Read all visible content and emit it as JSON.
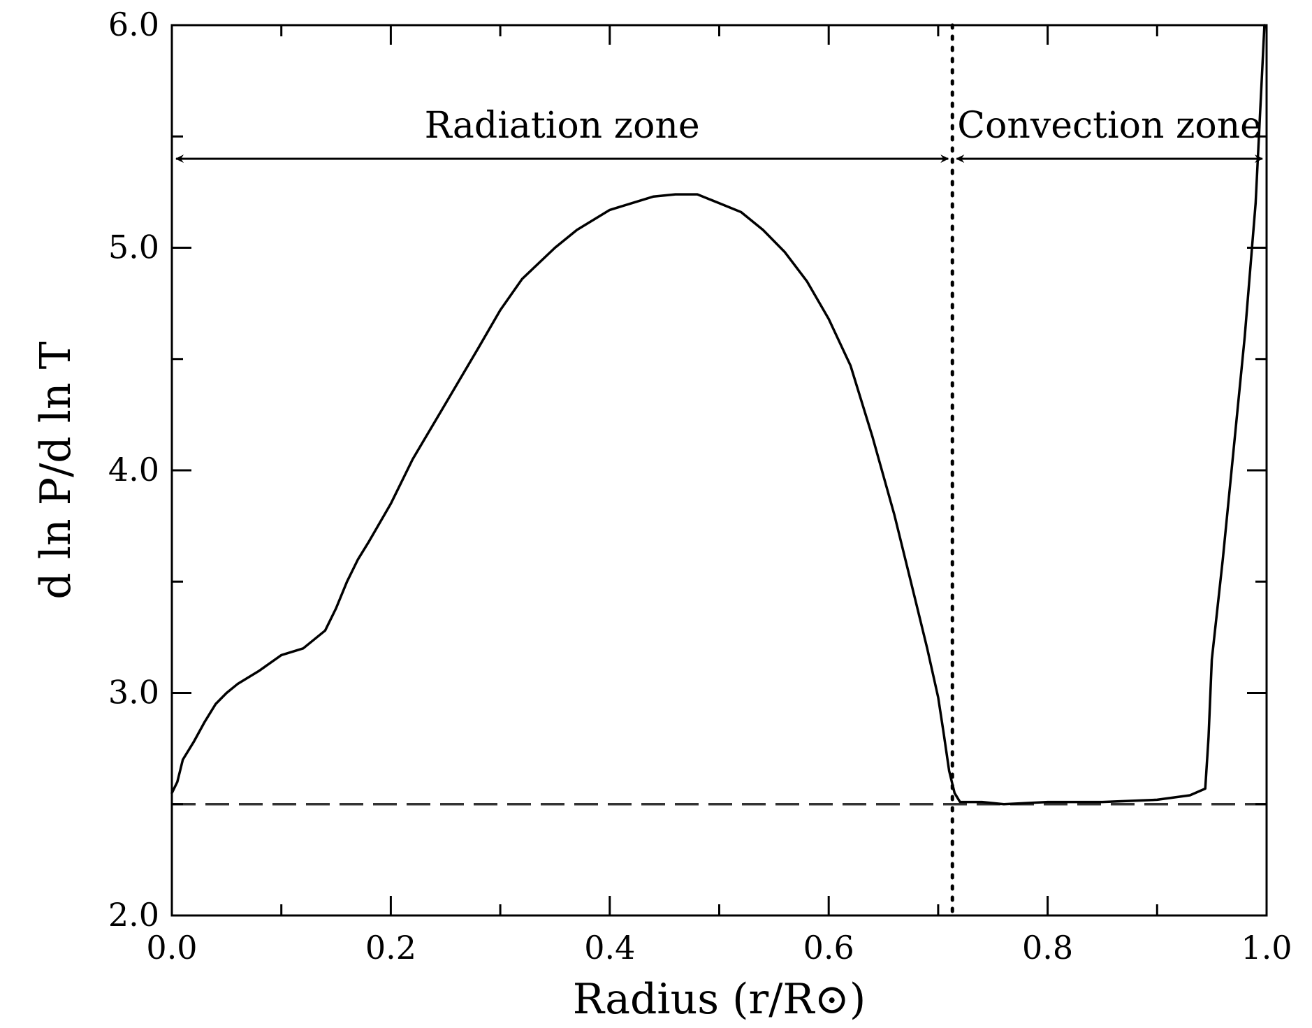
{
  "chart_data": {
    "type": "line",
    "title": "",
    "xlabel": "Radius (r/R⊙)",
    "ylabel": "d ln P/d ln T",
    "xlim": [
      0.0,
      1.0
    ],
    "ylim": [
      2.0,
      6.0
    ],
    "x_ticks": [
      {
        "value": 0.0,
        "label": "0.0"
      },
      {
        "value": 0.2,
        "label": "0.2"
      },
      {
        "value": 0.4,
        "label": "0.4"
      },
      {
        "value": 0.6,
        "label": "0.6"
      },
      {
        "value": 0.8,
        "label": "0.8"
      },
      {
        "value": 1.0,
        "label": "1.0"
      }
    ],
    "y_ticks": [
      {
        "value": 2.0,
        "label": "2.0"
      },
      {
        "value": 3.0,
        "label": "3.0"
      },
      {
        "value": 4.0,
        "label": "4.0"
      },
      {
        "value": 5.0,
        "label": "5.0"
      },
      {
        "value": 6.0,
        "label": "6.0"
      }
    ],
    "grid": false,
    "series": [
      {
        "name": "d ln P / d ln T",
        "style": "solid",
        "color": "#000000",
        "x": [
          0.0,
          0.005,
          0.01,
          0.02,
          0.03,
          0.04,
          0.05,
          0.06,
          0.08,
          0.1,
          0.12,
          0.14,
          0.15,
          0.16,
          0.17,
          0.18,
          0.2,
          0.22,
          0.25,
          0.28,
          0.3,
          0.32,
          0.35,
          0.37,
          0.4,
          0.42,
          0.44,
          0.46,
          0.48,
          0.5,
          0.52,
          0.54,
          0.56,
          0.58,
          0.6,
          0.62,
          0.64,
          0.66,
          0.68,
          0.69,
          0.7,
          0.705,
          0.71,
          0.715,
          0.72,
          0.74,
          0.76,
          0.8,
          0.85,
          0.9,
          0.93,
          0.944,
          0.947,
          0.95,
          0.96,
          0.97,
          0.98,
          0.99,
          0.995,
          0.998
        ],
        "y": [
          2.55,
          2.6,
          2.7,
          2.78,
          2.87,
          2.95,
          3.0,
          3.04,
          3.1,
          3.17,
          3.2,
          3.28,
          3.38,
          3.5,
          3.6,
          3.68,
          3.85,
          4.05,
          4.3,
          4.55,
          4.72,
          4.86,
          5.0,
          5.08,
          5.17,
          5.2,
          5.23,
          5.24,
          5.24,
          5.2,
          5.16,
          5.08,
          4.98,
          4.85,
          4.68,
          4.47,
          4.15,
          3.8,
          3.4,
          3.2,
          2.98,
          2.82,
          2.65,
          2.55,
          2.51,
          2.51,
          2.5,
          2.51,
          2.51,
          2.52,
          2.54,
          2.57,
          2.8,
          3.15,
          3.6,
          4.1,
          4.6,
          5.2,
          5.7,
          6.0
        ]
      }
    ],
    "reference_lines": [
      {
        "name": "adiabatic-limit",
        "orientation": "horizontal",
        "value": 2.5,
        "style": "dashed"
      },
      {
        "name": "convection-boundary",
        "orientation": "vertical",
        "value": 0.713,
        "style": "dotted"
      }
    ],
    "annotations": [
      {
        "text": "Radiation zone",
        "x_start": 0.0,
        "x_end": 0.713,
        "y": 5.4
      },
      {
        "text": "Convection zone",
        "x_start": 0.713,
        "x_end": 1.0,
        "y": 5.4
      }
    ]
  }
}
